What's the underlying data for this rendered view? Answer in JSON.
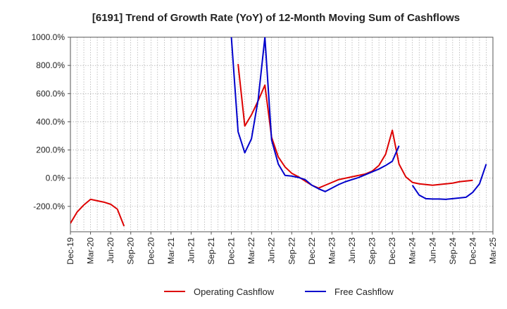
{
  "chart_data": {
    "type": "line",
    "title": "[6191]  Trend of Growth Rate (YoY) of 12-Month Moving Sum of Cashflows",
    "x_ticks": [
      "Dec-19",
      "Mar-20",
      "Jun-20",
      "Sep-20",
      "Dec-20",
      "Mar-21",
      "Jun-21",
      "Sep-21",
      "Dec-21",
      "Mar-22",
      "Jun-22",
      "Sep-22",
      "Dec-22",
      "Mar-23",
      "Jun-23",
      "Sep-23",
      "Dec-23",
      "Mar-24",
      "Jun-24",
      "Sep-24",
      "Dec-24",
      "Mar-25"
    ],
    "y_ticks": [
      "1000.0%",
      "800.0%",
      "600.0%",
      "400.0%",
      "200.0%",
      "0.0%",
      "-200.0%"
    ],
    "y_tick_values": [
      1000,
      800,
      600,
      400,
      200,
      0,
      -200
    ],
    "ylim": [
      -380,
      1000
    ],
    "grid": true,
    "legend_position": "bottom",
    "series": [
      {
        "name": "Operating Cashflow",
        "color": "#dd0000",
        "values": [
          -320,
          -240,
          -190,
          -150,
          -160,
          -170,
          -185,
          -220,
          -340,
          null,
          null,
          null,
          null,
          null,
          null,
          null,
          null,
          null,
          null,
          null,
          null,
          null,
          null,
          null,
          null,
          810,
          370,
          450,
          550,
          660,
          290,
          150,
          80,
          35,
          10,
          -20,
          -50,
          -70,
          -50,
          -30,
          -10,
          0,
          10,
          20,
          30,
          50,
          90,
          170,
          340,
          100,
          10,
          -30,
          -40,
          -45,
          -50,
          -45,
          -40,
          -35,
          -25,
          -20,
          -15
        ]
      },
      {
        "name": "Free Cashflow",
        "color": "#0000cc",
        "values": [
          null,
          null,
          null,
          null,
          null,
          null,
          null,
          null,
          null,
          null,
          null,
          null,
          null,
          null,
          null,
          null,
          null,
          null,
          null,
          null,
          null,
          null,
          null,
          null,
          1000,
          330,
          180,
          280,
          560,
          1000,
          270,
          100,
          20,
          15,
          5,
          -10,
          -50,
          -75,
          -95,
          -70,
          -45,
          -25,
          -10,
          5,
          25,
          45,
          65,
          90,
          120,
          230,
          null,
          -50,
          -120,
          -145,
          -148,
          -148,
          -150,
          -145,
          -140,
          -135,
          -100,
          -40,
          100
        ]
      }
    ]
  }
}
